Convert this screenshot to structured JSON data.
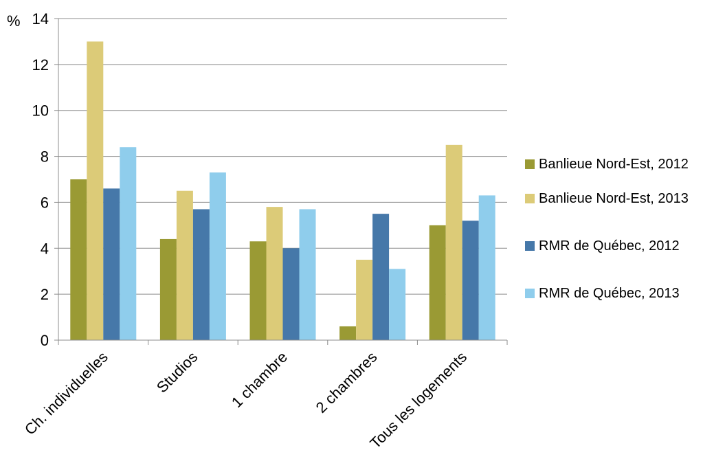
{
  "chart_data": {
    "type": "bar",
    "y_unit_label": "%",
    "categories": [
      "Ch. individuelles",
      "Studios",
      "1 chambre",
      "2 chambres",
      "Tous les logements"
    ],
    "series": [
      {
        "name": "Banlieue Nord-Est, 2012",
        "color": "#9a9a34",
        "values": [
          7.0,
          4.4,
          4.3,
          0.6,
          5.0
        ]
      },
      {
        "name": "Banlieue Nord-Est, 2013",
        "color": "#dccb78",
        "values": [
          13.0,
          6.5,
          5.8,
          3.5,
          8.5
        ]
      },
      {
        "name": "RMR de Québec, 2012",
        "color": "#4678a9",
        "values": [
          6.6,
          5.7,
          4.0,
          5.5,
          5.2
        ]
      },
      {
        "name": "RMR de Québec, 2013",
        "color": "#8fcdec",
        "values": [
          8.4,
          7.3,
          5.7,
          3.1,
          6.3
        ]
      }
    ],
    "ylim": [
      0,
      14
    ],
    "yticks": [
      "0",
      "2",
      "4",
      "6",
      "8",
      "10",
      "12",
      "14"
    ],
    "grid": true,
    "legend_position": "right"
  }
}
